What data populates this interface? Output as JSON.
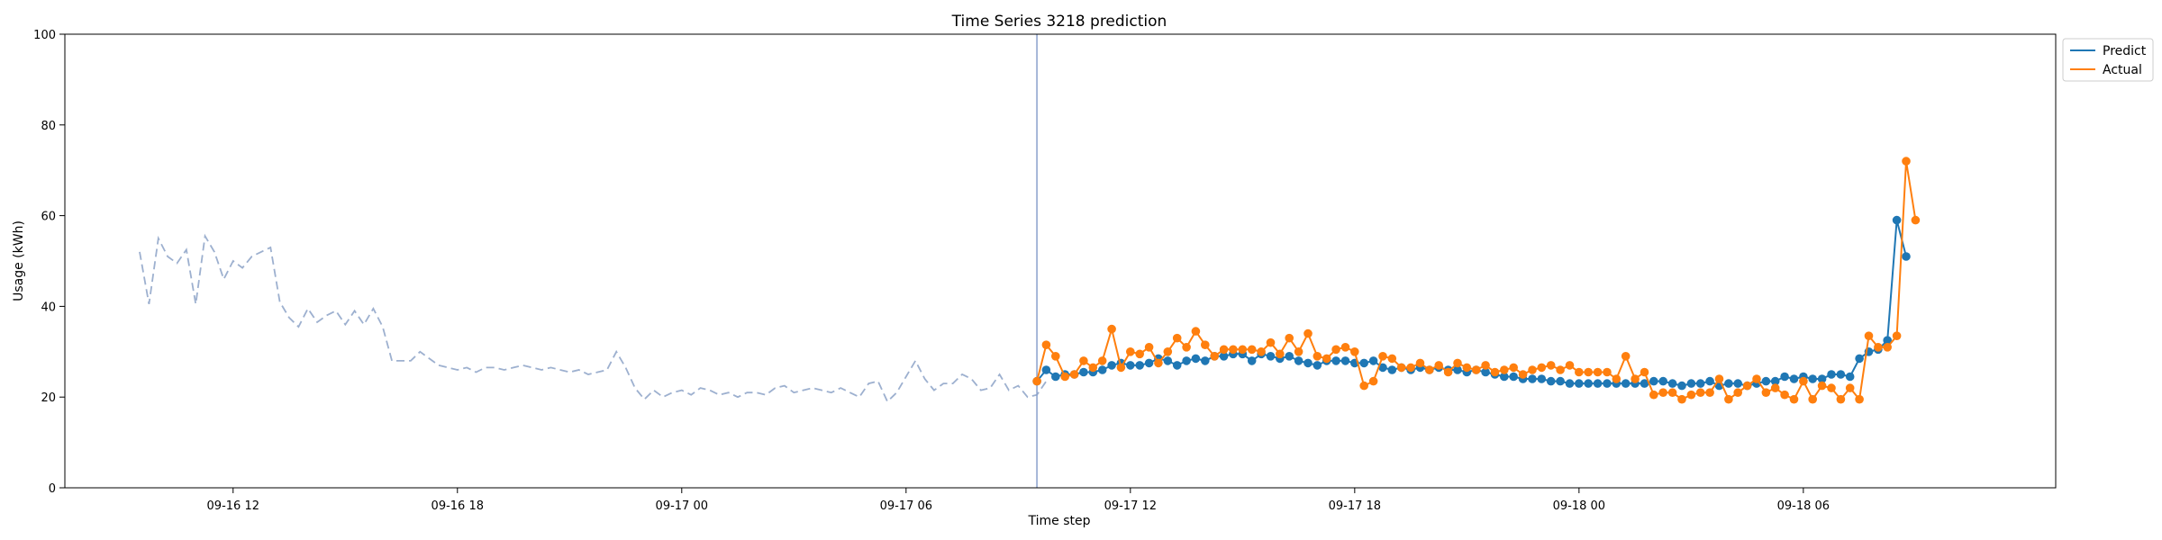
{
  "chart_data": {
    "type": "line",
    "title": "Time Series 3218 prediction",
    "xlabel": "Time step",
    "ylabel": "Usage (kWh)",
    "ylim": [
      0,
      100
    ],
    "yticks": [
      0,
      20,
      40,
      60,
      80,
      100
    ],
    "xlim": [
      "2024-09-16 07:30",
      "2024-09-18 12:45"
    ],
    "xticks": [
      {
        "t": "2024-09-16 12:00",
        "label": "09-16 12"
      },
      {
        "t": "2024-09-16 18:00",
        "label": "09-16 18"
      },
      {
        "t": "2024-09-17 00:00",
        "label": "09-17 00"
      },
      {
        "t": "2024-09-17 06:00",
        "label": "09-17 06"
      },
      {
        "t": "2024-09-17 12:00",
        "label": "09-17 12"
      },
      {
        "t": "2024-09-17 18:00",
        "label": "09-17 18"
      },
      {
        "t": "2024-09-18 00:00",
        "label": "09-18 00"
      },
      {
        "t": "2024-09-18 06:00",
        "label": "09-18 06"
      }
    ],
    "grid": false,
    "legend": "top-right outside",
    "split_time": "2024-09-17 09:30",
    "interval_minutes": 15,
    "history": {
      "start": "2024-09-16 09:30",
      "color": "#9db0cf",
      "values": [
        52,
        40.5,
        55,
        51,
        49.5,
        52.5,
        40.5,
        55.5,
        52,
        46,
        50,
        48.5,
        51,
        52,
        53,
        41,
        37.5,
        35.5,
        39.5,
        36.5,
        38,
        39,
        36,
        39,
        36,
        39.5,
        35.5,
        28,
        28,
        28,
        30,
        28.5,
        27,
        26.5,
        26,
        26.5,
        25.5,
        26.5,
        26.5,
        26,
        26.5,
        27,
        26.5,
        26,
        26.5,
        26,
        25.5,
        26,
        25,
        25.5,
        26,
        30,
        26.5,
        22,
        19.5,
        21.5,
        20,
        21,
        21.5,
        20.5,
        22,
        21.5,
        20.5,
        21,
        20,
        21,
        21,
        20.5,
        22,
        22.5,
        21,
        21.5,
        22,
        21.5,
        21,
        22,
        21,
        20,
        23,
        23.5,
        19,
        21,
        24.5,
        28,
        24,
        21.5,
        23,
        23,
        25,
        24,
        21.5,
        22,
        25,
        21.5,
        22.5,
        20,
        20.5,
        23.5
      ]
    },
    "series": [
      {
        "name": "Predict",
        "color": "#1f77b4",
        "start": "2024-09-17 09:30",
        "values": [
          23.5,
          26,
          24.5,
          25,
          25,
          25.5,
          25.5,
          26,
          27,
          27.5,
          27,
          27,
          27.5,
          28.5,
          28,
          27,
          28,
          28.5,
          28,
          29,
          29,
          29.5,
          29.5,
          28,
          29.5,
          29,
          28.5,
          29,
          28,
          27.5,
          27,
          28,
          28,
          28,
          27.5,
          27.5,
          28,
          26.5,
          26,
          26.5,
          26,
          26.5,
          26,
          26.5,
          26,
          26,
          25.5,
          26,
          25.5,
          25,
          24.5,
          24.5,
          24,
          24,
          24,
          23.5,
          23.5,
          23,
          23,
          23,
          23,
          23,
          23,
          23,
          23,
          23,
          23.5,
          23.5,
          23,
          22.5,
          23,
          23,
          23.5,
          22.5,
          23,
          23,
          22.5,
          23,
          23.5,
          23.5,
          24.5,
          24,
          24.5,
          24,
          24,
          25,
          25,
          24.5,
          28.5,
          30,
          30.5,
          32.5,
          59,
          51
        ]
      },
      {
        "name": "Actual",
        "color": "#ff7f0e",
        "start": "2024-09-17 09:30",
        "values": [
          23.5,
          31.5,
          29,
          24.5,
          25,
          28,
          26.5,
          28,
          35,
          26.5,
          30,
          29.5,
          31,
          27.5,
          30,
          33,
          31,
          34.5,
          31.5,
          29,
          30.5,
          30.5,
          30.5,
          30.5,
          30,
          32,
          29.5,
          33,
          30,
          34,
          29,
          28.5,
          30.5,
          31,
          30,
          22.5,
          23.5,
          29,
          28.5,
          26.5,
          26.5,
          27.5,
          26,
          27,
          25.5,
          27.5,
          26.5,
          26,
          27,
          25.5,
          26,
          26.5,
          25,
          26,
          26.5,
          27,
          26,
          27,
          25.5,
          25.5,
          25.5,
          25.5,
          24,
          29,
          24,
          25.5,
          20.5,
          21,
          21,
          19.5,
          20.5,
          21,
          21,
          24,
          19.5,
          21,
          22.5,
          24,
          21,
          22,
          20.5,
          19.5,
          23.5,
          19.5,
          22.5,
          22,
          19.5,
          22,
          19.5,
          33.5,
          31,
          31,
          33.5,
          72,
          59
        ]
      }
    ]
  }
}
